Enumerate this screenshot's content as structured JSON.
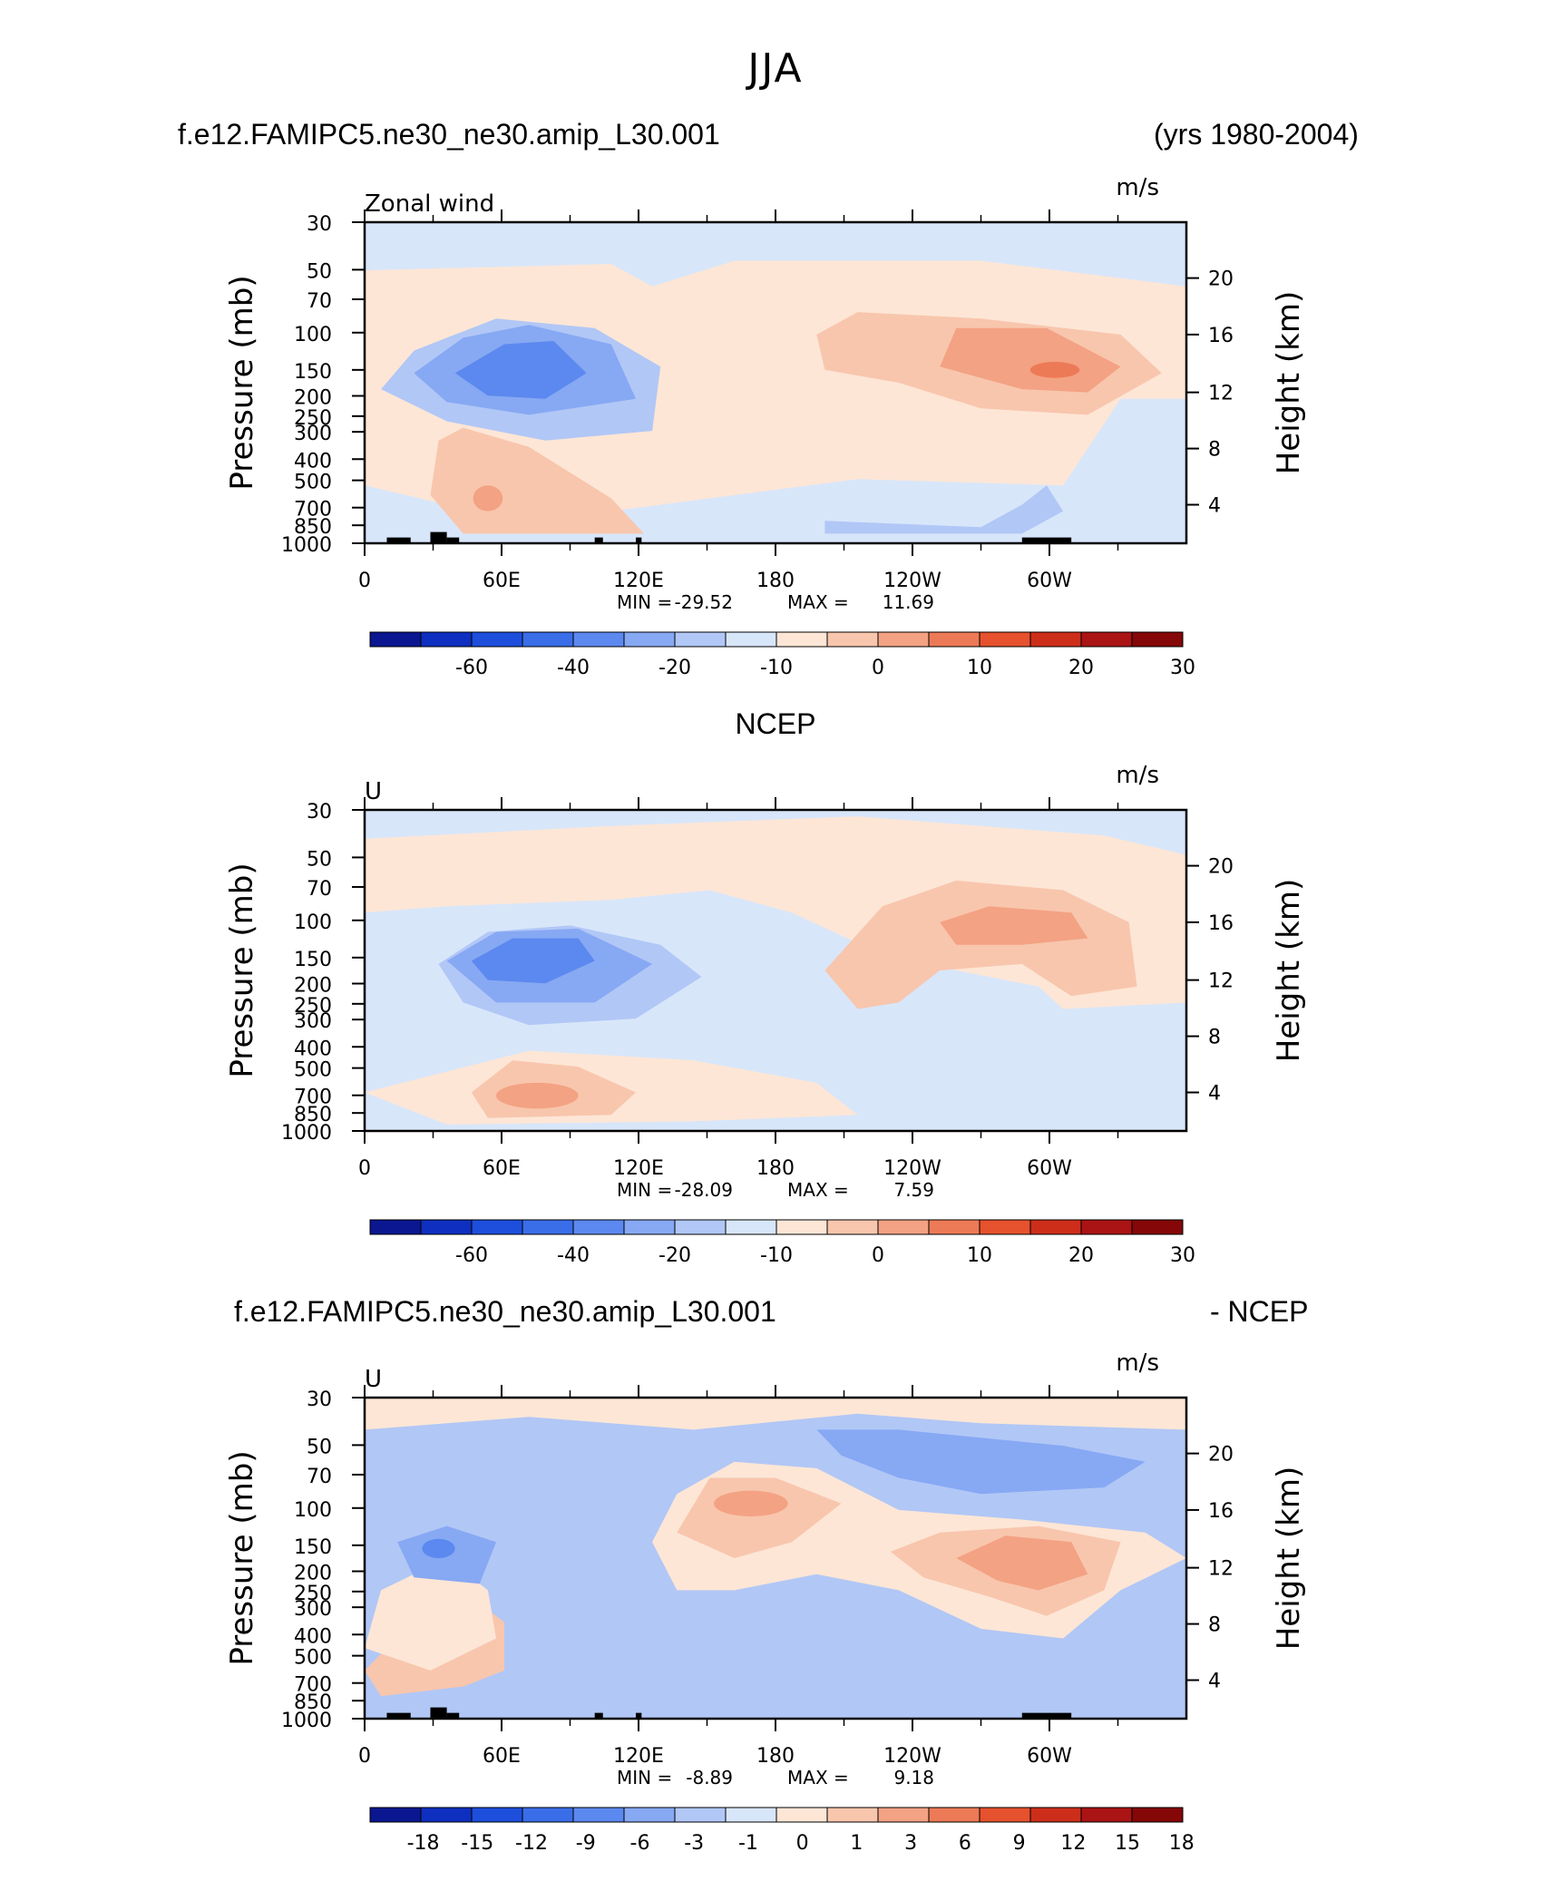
{
  "title": "JJA",
  "chart_data": [
    {
      "type": "heatmap",
      "header_left": "f.e12.FAMIPC5.ne30_ne30.amip_L30.001",
      "header_right": "(yrs 1980-2004)",
      "variable_label": "Zonal wind",
      "units": "m/s",
      "ylabel_left": "Pressure (mb)",
      "ylabel_right": "Height (km)",
      "x_ticks": [
        "0",
        "60E",
        "120E",
        "180",
        "120W",
        "60W"
      ],
      "y_ticks": [
        "30",
        "50",
        "70",
        "100",
        "150",
        "200",
        "250",
        "300",
        "400",
        "500",
        "700",
        "850",
        "1000"
      ],
      "height_ticks": [
        "20",
        "16",
        "12",
        "8",
        "4"
      ],
      "stats": {
        "min_label": "MIN =",
        "min": "-29.52",
        "max_label": "MAX =",
        "max": "11.69"
      },
      "colorbar_labels": [
        "-60",
        "-40",
        "-20",
        "-10",
        "0",
        "10",
        "20",
        "30"
      ],
      "has_terrain": true
    },
    {
      "type": "heatmap",
      "header_left": "",
      "header_center": "NCEP",
      "header_right": "",
      "variable_label": "U",
      "units": "m/s",
      "ylabel_left": "Pressure (mb)",
      "ylabel_right": "Height (km)",
      "x_ticks": [
        "0",
        "60E",
        "120E",
        "180",
        "120W",
        "60W"
      ],
      "y_ticks": [
        "30",
        "50",
        "70",
        "100",
        "150",
        "200",
        "250",
        "300",
        "400",
        "500",
        "700",
        "850",
        "1000"
      ],
      "height_ticks": [
        "20",
        "16",
        "12",
        "8",
        "4"
      ],
      "stats": {
        "min_label": "MIN =",
        "min": "-28.09",
        "max_label": "MAX =",
        "max": "7.59"
      },
      "colorbar_labels": [
        "-60",
        "-40",
        "-20",
        "-10",
        "0",
        "10",
        "20",
        "30"
      ],
      "has_terrain": false
    },
    {
      "type": "heatmap",
      "header_left": "f.e12.FAMIPC5.ne30_ne30.amip_L30.001",
      "header_right": "- NCEP",
      "variable_label": "U",
      "units": "m/s",
      "ylabel_left": "Pressure (mb)",
      "ylabel_right": "Height (km)",
      "x_ticks": [
        "0",
        "60E",
        "120E",
        "180",
        "120W",
        "60W"
      ],
      "y_ticks": [
        "30",
        "50",
        "70",
        "100",
        "150",
        "200",
        "250",
        "300",
        "400",
        "500",
        "700",
        "850",
        "1000"
      ],
      "height_ticks": [
        "20",
        "16",
        "12",
        "8",
        "4"
      ],
      "stats": {
        "min_label": "MIN =",
        "min": "-8.89",
        "max_label": "MAX =",
        "max": "9.18"
      },
      "colorbar_labels": [
        "-18",
        "-15",
        "-12",
        "-9",
        "-6",
        "-3",
        "-1",
        "0",
        "1",
        "3",
        "6",
        "9",
        "12",
        "15",
        "18"
      ],
      "has_terrain": true
    }
  ],
  "colorbar_colors": [
    "#0a1790",
    "#0e2fbf",
    "#1d4fdc",
    "#3a6de8",
    "#5c89ef",
    "#87a8f3",
    "#b1c7f6",
    "#d8e6fa",
    "#fde6d6",
    "#f8c6ad",
    "#f3a283",
    "#ed7a56",
    "#e5522d",
    "#cd2e1a",
    "#aa1414",
    "#850707"
  ]
}
